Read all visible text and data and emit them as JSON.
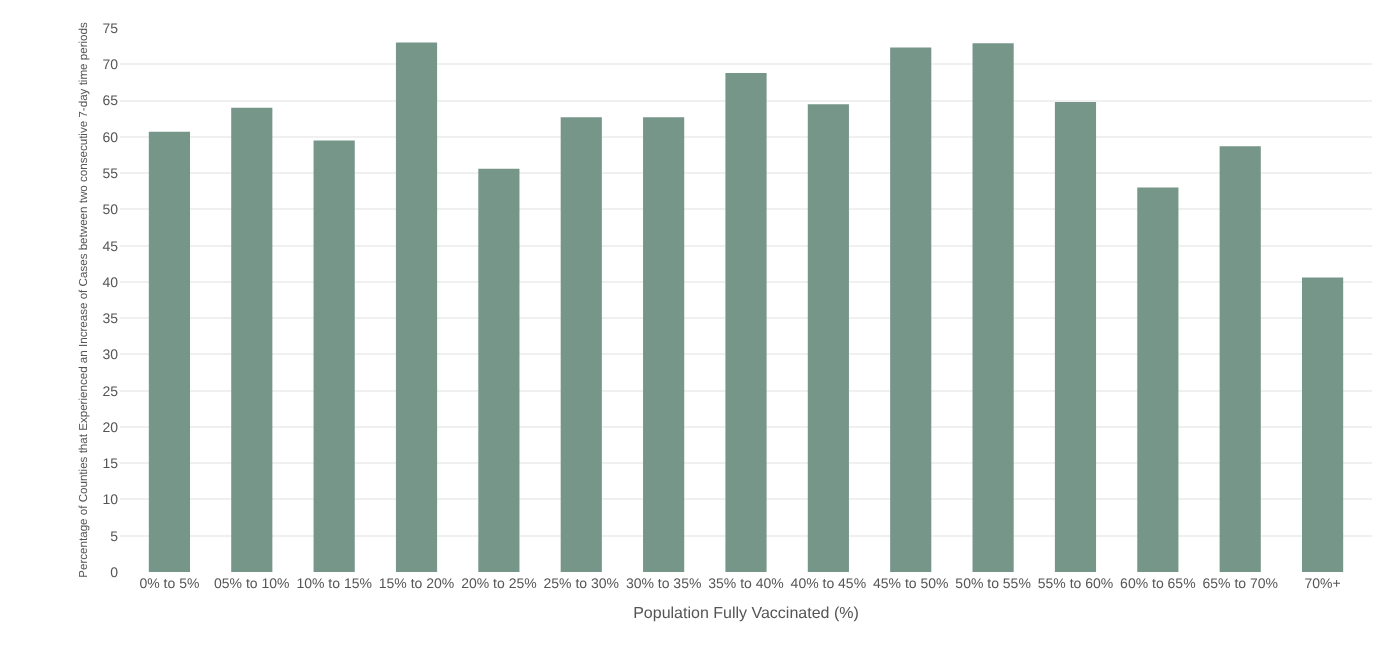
{
  "chart_data": {
    "type": "bar",
    "xlabel": "Population Fully Vaccinated (%)",
    "ylabel": "Percentage of Counties that Experienced an Increase of Cases between two consecutive 7-day time periods",
    "categories": [
      "0% to 5%",
      "05% to 10%",
      "10% to 15%",
      "15% to 20%",
      "20% to 25%",
      "25% to 30%",
      "30% to 35%",
      "35% to 40%",
      "40% to 45%",
      "45% to 50%",
      "50% to 55%",
      "55% to 60%",
      "60% to 65%",
      "65% to 70%",
      "70%+"
    ],
    "values": [
      60.7,
      64,
      59.5,
      73,
      55.6,
      62.7,
      62.7,
      68.8,
      64.5,
      72.3,
      72.9,
      64.8,
      53,
      58.7,
      40.6
    ],
    "color": "#77968a",
    "ylim": [
      0,
      75
    ],
    "yticks": [
      0,
      5,
      10,
      15,
      20,
      25,
      30,
      35,
      40,
      45,
      50,
      55,
      60,
      65,
      70,
      75
    ],
    "grid": "y"
  }
}
